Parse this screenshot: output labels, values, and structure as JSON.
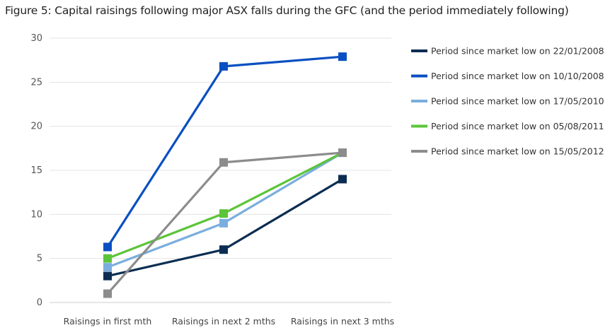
{
  "title": "Figure 5: Capital raisings following major ASX falls during the GFC (and the period immediately following)",
  "chart_data": {
    "type": "line",
    "categories": [
      "Raisings in first mth",
      "Raisings in next 2 mths",
      "Raisings in next 3 mths"
    ],
    "ylim": [
      0,
      30
    ],
    "yticks": [
      0,
      5,
      10,
      15,
      20,
      25,
      30
    ],
    "grid": true,
    "legend_position": "right",
    "marker": "square",
    "series": [
      {
        "name": "Period since market low on 22/01/2008",
        "color": "#0b2d52",
        "values": [
          3,
          6,
          14
        ]
      },
      {
        "name": "Period since market low on 10/10/2008",
        "color": "#0a4fc2",
        "values": [
          6.3,
          26.8,
          27.9
        ]
      },
      {
        "name": "Period since market low on 17/05/2010",
        "color": "#7aaede",
        "values": [
          4,
          9,
          17
        ]
      },
      {
        "name": "Period since market low on 05/08/2011",
        "color": "#5cc43a",
        "values": [
          5,
          10.1,
          17
        ]
      },
      {
        "name": "Period since market low on 15/05/2012",
        "color": "#8c8c8c",
        "values": [
          1,
          15.9,
          17
        ]
      }
    ]
  }
}
